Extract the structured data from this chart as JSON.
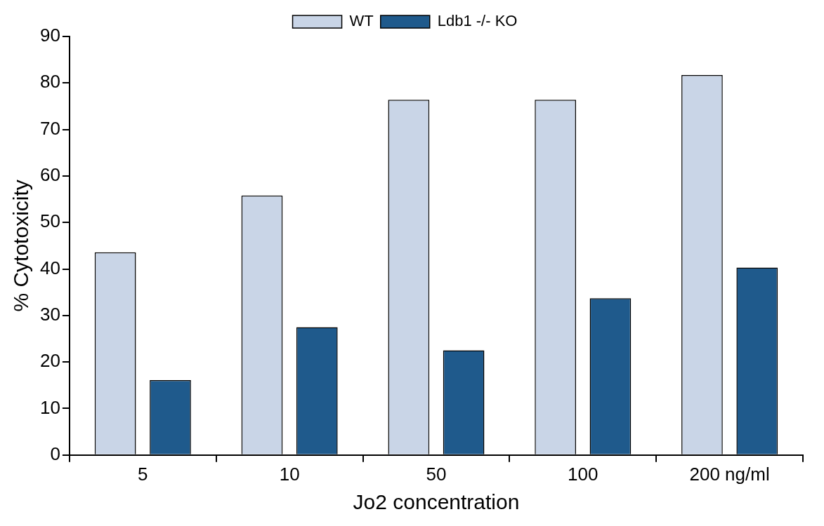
{
  "chart_data": {
    "type": "bar",
    "xlabel": "Jo2 concentration",
    "ylabel": "% Cytotoxicity",
    "categories": [
      "5",
      "10",
      "50",
      "100",
      "200 ng/ml"
    ],
    "series": [
      {
        "name": "WT",
        "color": "#c9d5e7",
        "values": [
          43.6,
          55.8,
          76.4,
          76.4,
          81.7
        ]
      },
      {
        "name": "Ldb1 -/- KO",
        "color": "#1f5a8c",
        "values": [
          16.1,
          27.5,
          22.5,
          33.7,
          40.3
        ]
      }
    ],
    "ylim": [
      0,
      90
    ],
    "yticks": [
      0,
      10,
      20,
      30,
      40,
      50,
      60,
      70,
      80,
      90
    ],
    "grid": false,
    "legend": "top"
  }
}
